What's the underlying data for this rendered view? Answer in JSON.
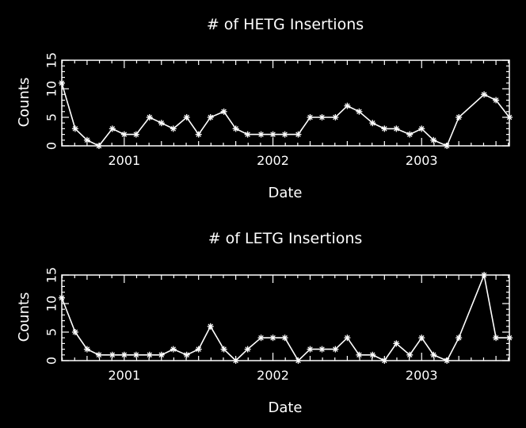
{
  "chart_data": [
    {
      "type": "line",
      "title": "# of HETG Insertions",
      "xlabel": "Date",
      "ylabel": "Counts",
      "xlim": [
        2000.58,
        2003.59
      ],
      "ylim": [
        0,
        15
      ],
      "xticks": [
        2001,
        2002,
        2003
      ],
      "yticks": [
        0,
        5,
        10,
        15
      ],
      "grid": false,
      "marker": "asterisk",
      "series": [
        {
          "x": [
            2000.58,
            2000.67,
            2000.75,
            2000.83,
            2000.92,
            2001.0,
            2001.08,
            2001.17,
            2001.25,
            2001.33,
            2001.42,
            2001.5,
            2001.58,
            2001.67,
            2001.75,
            2001.83,
            2001.92,
            2002.0,
            2002.08,
            2002.17,
            2002.25,
            2002.33,
            2002.42,
            2002.5,
            2002.58,
            2002.67,
            2002.75,
            2002.83,
            2002.92,
            2003.0,
            2003.08,
            2003.17,
            2003.25,
            2003.42,
            2003.5,
            2003.59
          ],
          "y": [
            11,
            3,
            1,
            0,
            3,
            2,
            2,
            5,
            4,
            3,
            5,
            2,
            5,
            6,
            3,
            2,
            2,
            2,
            2,
            2,
            5,
            5,
            5,
            7,
            6,
            4,
            3,
            3,
            2,
            3,
            1,
            0,
            5,
            9,
            8,
            5
          ]
        }
      ]
    },
    {
      "type": "line",
      "title": "# of LETG Insertions",
      "xlabel": "Date",
      "ylabel": "Counts",
      "xlim": [
        2000.58,
        2003.59
      ],
      "ylim": [
        0,
        15
      ],
      "xticks": [
        2001,
        2002,
        2003
      ],
      "yticks": [
        0,
        5,
        10,
        15
      ],
      "grid": false,
      "marker": "asterisk",
      "series": [
        {
          "x": [
            2000.58,
            2000.67,
            2000.75,
            2000.83,
            2000.92,
            2001.0,
            2001.08,
            2001.17,
            2001.25,
            2001.33,
            2001.42,
            2001.5,
            2001.58,
            2001.67,
            2001.75,
            2001.83,
            2001.92,
            2002.0,
            2002.08,
            2002.17,
            2002.25,
            2002.33,
            2002.42,
            2002.5,
            2002.58,
            2002.67,
            2002.75,
            2002.83,
            2002.92,
            2003.0,
            2003.08,
            2003.17,
            2003.25,
            2003.42,
            2003.5,
            2003.59
          ],
          "y": [
            11,
            5,
            2,
            1,
            1,
            1,
            1,
            1,
            1,
            2,
            1,
            2,
            6,
            2,
            0,
            2,
            4,
            4,
            4,
            0,
            2,
            2,
            2,
            4,
            1,
            1,
            0,
            3,
            1,
            4,
            1,
            0,
            4,
            15,
            4,
            4
          ]
        }
      ]
    }
  ]
}
